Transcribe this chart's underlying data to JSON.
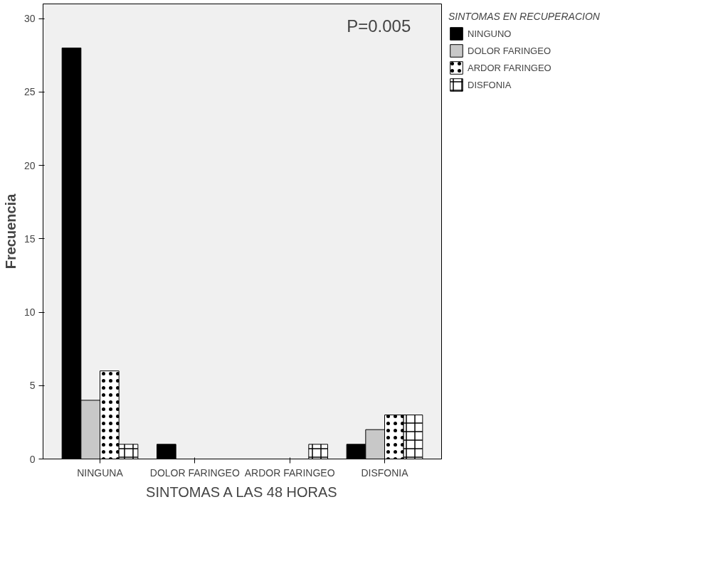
{
  "chart_data": {
    "type": "bar",
    "xlabel": "SINTOMAS A LAS 48 HORAS",
    "ylabel": "Frecuencia",
    "legend_title": "SINTOMAS EN RECUPERACION",
    "legend": "top right",
    "grid": false,
    "categories": [
      "NINGUNA",
      "DOLOR FARINGEO",
      "ARDOR FARINGEO",
      "DISFONIA"
    ],
    "ylim": [
      0,
      31
    ],
    "yticks": [
      0,
      5,
      10,
      15,
      20,
      25,
      30
    ],
    "annotations": [
      "P=0.005"
    ],
    "series": [
      {
        "name": "NINGUNO",
        "color": "#000000",
        "values": [
          28,
          1,
          0,
          1
        ]
      },
      {
        "name": "DOLOR FARINGEO",
        "color": "#c8c8c8",
        "values": [
          4,
          0,
          0,
          2
        ]
      },
      {
        "name": "ARDOR FARINGEO",
        "color": "#ffffff",
        "values": [
          6,
          0,
          0,
          3
        ]
      },
      {
        "name": "DISFONIA",
        "color": "#ffffff",
        "values": [
          1,
          0,
          1,
          3
        ]
      }
    ]
  }
}
